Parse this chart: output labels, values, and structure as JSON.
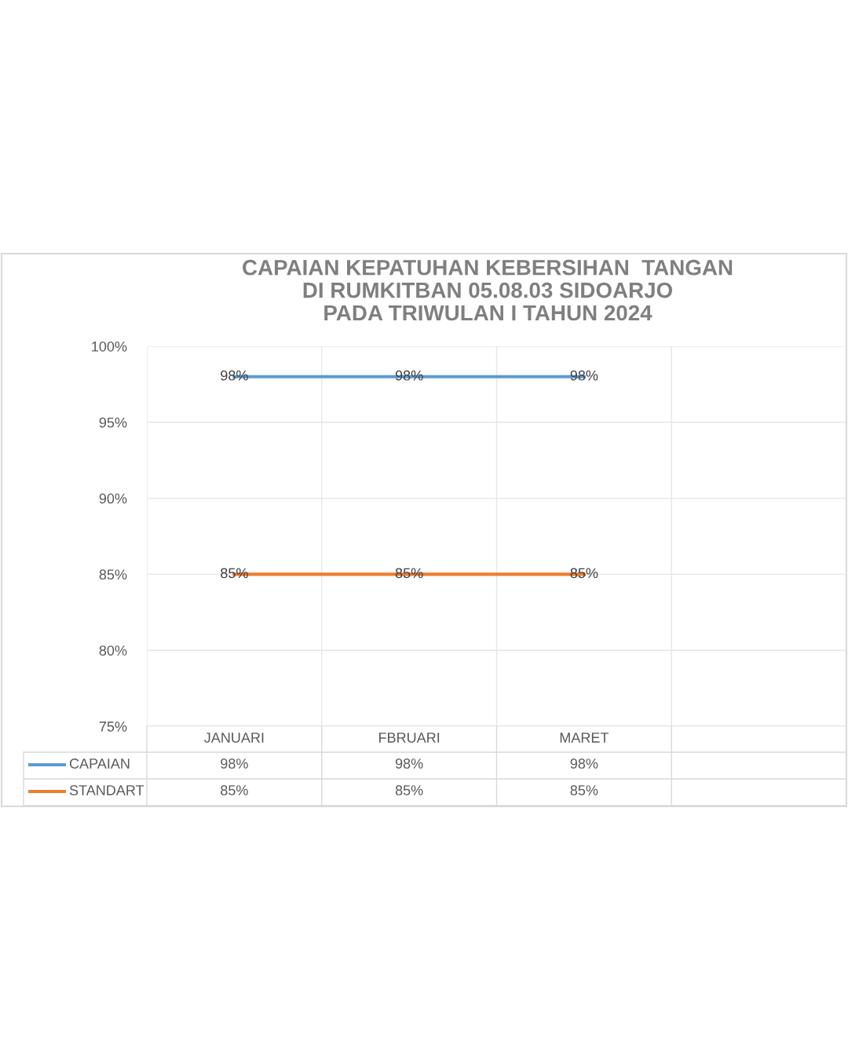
{
  "chart_data": {
    "type": "line",
    "title": "CAPAIAN KEPATUHAN KEBERSIHAN  TANGAN\nDI RUMKITBAN 05.08.03 SIDOARJO\nPADA TRIWULAN I TAHUN 2024",
    "categories": [
      "JANUARI",
      "FBRUARI",
      "MARET",
      null
    ],
    "series": [
      {
        "name": "CAPAIAN",
        "color": "#5b9bd5",
        "values": [
          98,
          98,
          98,
          null
        ],
        "value_labels": [
          "98%",
          "98%",
          "98%",
          null
        ]
      },
      {
        "name": "STANDART",
        "color": "#ed7d31",
        "values": [
          85,
          85,
          85,
          null
        ],
        "value_labels": [
          "85%",
          "85%",
          "85%",
          null
        ]
      }
    ],
    "ylim": [
      75,
      100
    ],
    "yticks": [
      {
        "value": 75,
        "label": "75%"
      },
      {
        "value": 80,
        "label": "80%"
      },
      {
        "value": 85,
        "label": "85%"
      },
      {
        "value": 90,
        "label": "90%"
      },
      {
        "value": 95,
        "label": "95%"
      },
      {
        "value": 100,
        "label": "100%"
      }
    ],
    "grid": true,
    "legend": "bottom"
  }
}
